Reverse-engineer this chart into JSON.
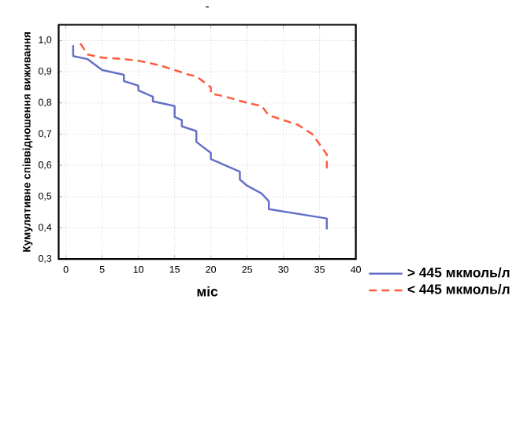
{
  "chart_data": {
    "type": "line",
    "title": "-",
    "xlabel": "міс",
    "ylabel": "Кумулятивне співвідношення виживання",
    "xlim": [
      -1,
      40
    ],
    "ylim": [
      0.3,
      1.05
    ],
    "xticks": [
      0,
      5,
      10,
      15,
      20,
      25,
      30,
      35,
      40
    ],
    "yticks": [
      {
        "value": 0.3,
        "label": "0,3"
      },
      {
        "value": 0.4,
        "label": "0,4"
      },
      {
        "value": 0.5,
        "label": "0,5"
      },
      {
        "value": 0.6,
        "label": "0,6"
      },
      {
        "value": 0.7,
        "label": "0,7"
      },
      {
        "value": 0.8,
        "label": "0,8"
      },
      {
        "value": 0.9,
        "label": "0,9"
      },
      {
        "value": 1.0,
        "label": "1,0"
      }
    ],
    "grid": true,
    "legend": "bottom right",
    "marker": "none",
    "series": [
      {
        "name": "> 445  мкмоль/л",
        "color": "#6670c8",
        "line_style": "solid",
        "x": [
          1,
          1,
          3,
          5,
          8,
          8,
          10,
          10,
          12,
          12,
          15,
          15,
          16,
          16,
          18,
          18,
          20,
          20,
          24,
          24,
          25,
          27,
          28,
          28,
          36,
          36
        ],
        "values": [
          0.985,
          0.95,
          0.94,
          0.905,
          0.89,
          0.87,
          0.855,
          0.84,
          0.82,
          0.805,
          0.79,
          0.755,
          0.745,
          0.725,
          0.71,
          0.675,
          0.64,
          0.62,
          0.58,
          0.555,
          0.535,
          0.51,
          0.485,
          0.46,
          0.43,
          0.395
        ]
      },
      {
        "name": "< 445  мкмоль/л",
        "color": "#ff5a3c",
        "line_style": "dashed",
        "x": [
          2,
          3,
          5,
          8,
          10,
          13,
          15,
          17,
          18,
          20,
          20,
          22,
          25,
          27,
          28,
          30,
          32,
          34,
          36,
          36
        ],
        "values": [
          0.99,
          0.955,
          0.945,
          0.94,
          0.935,
          0.92,
          0.905,
          0.89,
          0.885,
          0.85,
          0.83,
          0.82,
          0.8,
          0.79,
          0.76,
          0.745,
          0.73,
          0.7,
          0.635,
          0.59
        ]
      }
    ]
  }
}
